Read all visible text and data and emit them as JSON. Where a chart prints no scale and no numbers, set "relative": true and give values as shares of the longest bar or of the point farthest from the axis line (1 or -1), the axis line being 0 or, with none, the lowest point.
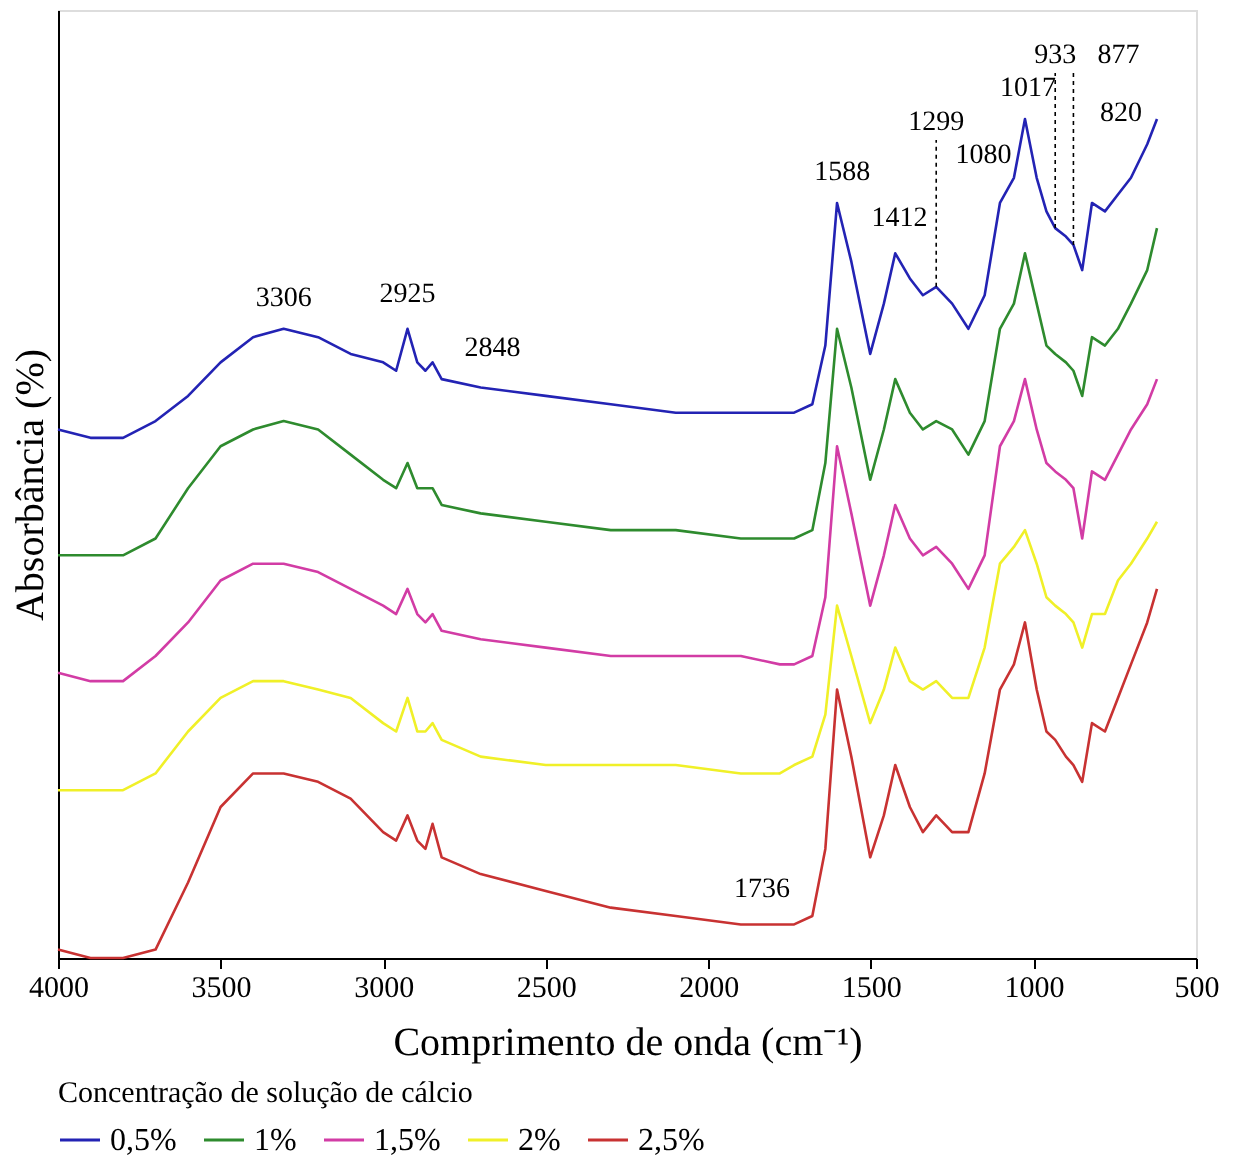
{
  "chart_data": {
    "type": "line",
    "relative": true,
    "xlabel": "Comprimento de onda (cm⁻¹)",
    "ylabel": "Absorbância (%)",
    "legend_title": "Concentração de solução de cálcio",
    "x": [
      4000,
      3900,
      3800,
      3700,
      3600,
      3500,
      3400,
      3306,
      3200,
      3100,
      3000,
      2960,
      2925,
      2895,
      2870,
      2848,
      2820,
      2700,
      2500,
      2300,
      2100,
      1900,
      1780,
      1736,
      1680,
      1640,
      1604,
      1560,
      1502,
      1460,
      1425,
      1380,
      1340,
      1299,
      1250,
      1200,
      1150,
      1103,
      1060,
      1026,
      990,
      960,
      933,
      900,
      877,
      850,
      820,
      780,
      740,
      700,
      650,
      620
    ],
    "xlim": [
      4000,
      500
    ],
    "xticks": [
      4000,
      3500,
      3000,
      2500,
      2000,
      1500,
      1000,
      500
    ],
    "series": [
      {
        "name": "0,5%",
        "color": "#2323b4",
        "values": [
          0.63,
          0.62,
          0.62,
          0.64,
          0.67,
          0.71,
          0.74,
          0.75,
          0.74,
          0.72,
          0.71,
          0.7,
          0.75,
          0.71,
          0.7,
          0.71,
          0.69,
          0.68,
          0.67,
          0.66,
          0.65,
          0.65,
          0.65,
          0.65,
          0.66,
          0.73,
          0.9,
          0.83,
          0.72,
          0.78,
          0.84,
          0.81,
          0.79,
          0.8,
          0.78,
          0.75,
          0.79,
          0.9,
          0.93,
          1.0,
          0.93,
          0.89,
          0.87,
          0.86,
          0.85,
          0.82,
          0.9,
          0.89,
          0.91,
          0.93,
          0.97,
          1.0
        ]
      },
      {
        "name": "1%",
        "color": "#2e8b2e",
        "values": [
          0.48,
          0.48,
          0.48,
          0.5,
          0.56,
          0.61,
          0.63,
          0.64,
          0.63,
          0.6,
          0.57,
          0.56,
          0.59,
          0.56,
          0.56,
          0.56,
          0.54,
          0.53,
          0.52,
          0.51,
          0.51,
          0.5,
          0.5,
          0.5,
          0.51,
          0.59,
          0.75,
          0.68,
          0.57,
          0.63,
          0.69,
          0.65,
          0.63,
          0.64,
          0.63,
          0.6,
          0.64,
          0.75,
          0.78,
          0.84,
          0.78,
          0.73,
          0.72,
          0.71,
          0.7,
          0.67,
          0.74,
          0.73,
          0.75,
          0.78,
          0.82,
          0.87
        ]
      },
      {
        "name": "1,5%",
        "color": "#d23ca5",
        "values": [
          0.34,
          0.33,
          0.33,
          0.36,
          0.4,
          0.45,
          0.47,
          0.47,
          0.46,
          0.44,
          0.42,
          0.41,
          0.44,
          0.41,
          0.4,
          0.41,
          0.39,
          0.38,
          0.37,
          0.36,
          0.36,
          0.36,
          0.35,
          0.35,
          0.36,
          0.43,
          0.61,
          0.53,
          0.42,
          0.48,
          0.54,
          0.5,
          0.48,
          0.49,
          0.47,
          0.44,
          0.48,
          0.61,
          0.64,
          0.69,
          0.63,
          0.59,
          0.58,
          0.57,
          0.56,
          0.5,
          0.58,
          0.57,
          0.6,
          0.63,
          0.66,
          0.69
        ]
      },
      {
        "name": "2%",
        "color": "#f0f028",
        "values": [
          0.2,
          0.2,
          0.2,
          0.22,
          0.27,
          0.31,
          0.33,
          0.33,
          0.32,
          0.31,
          0.28,
          0.27,
          0.31,
          0.27,
          0.27,
          0.28,
          0.26,
          0.24,
          0.23,
          0.23,
          0.23,
          0.22,
          0.22,
          0.23,
          0.24,
          0.29,
          0.42,
          0.36,
          0.28,
          0.32,
          0.37,
          0.33,
          0.32,
          0.33,
          0.31,
          0.31,
          0.37,
          0.47,
          0.49,
          0.51,
          0.47,
          0.43,
          0.42,
          0.41,
          0.4,
          0.37,
          0.41,
          0.41,
          0.45,
          0.47,
          0.5,
          0.52
        ]
      },
      {
        "name": "2,5%",
        "color": "#c83232",
        "values": [
          0.01,
          0.0,
          0.0,
          0.01,
          0.09,
          0.18,
          0.22,
          0.22,
          0.21,
          0.19,
          0.15,
          0.14,
          0.17,
          0.14,
          0.13,
          0.16,
          0.12,
          0.1,
          0.08,
          0.06,
          0.05,
          0.04,
          0.04,
          0.04,
          0.05,
          0.13,
          0.32,
          0.24,
          0.12,
          0.17,
          0.23,
          0.18,
          0.15,
          0.17,
          0.15,
          0.15,
          0.22,
          0.32,
          0.35,
          0.4,
          0.32,
          0.27,
          0.26,
          0.24,
          0.23,
          0.21,
          0.28,
          0.27,
          0.31,
          0.35,
          0.4,
          0.44
        ]
      }
    ],
    "annotations": [
      {
        "text": "3306",
        "x": 3306,
        "y": 0.75
      },
      {
        "text": "2925",
        "x": 2925,
        "y": 0.75
      },
      {
        "text": "2848",
        "x": 2848,
        "y": 0.71
      },
      {
        "text": "1588",
        "x": 1588,
        "y": 0.9
      },
      {
        "text": "1412",
        "x": 1412,
        "y": 0.84
      },
      {
        "text": "1299",
        "x": 1299,
        "y": 0.8
      },
      {
        "text": "1080",
        "x": 1080,
        "y": 0.92
      },
      {
        "text": "1017",
        "x": 1017,
        "y": 1.0
      },
      {
        "text": "933",
        "x": 933,
        "y": 0.87
      },
      {
        "text": "877",
        "x": 877,
        "y": 0.85
      },
      {
        "text": "820",
        "x": 820,
        "y": 0.9
      },
      {
        "text": "1736",
        "x": 1736,
        "y": 0.04
      }
    ],
    "legend": "bottom",
    "grid": false,
    "marker": "none",
    "line_style": "solid"
  }
}
